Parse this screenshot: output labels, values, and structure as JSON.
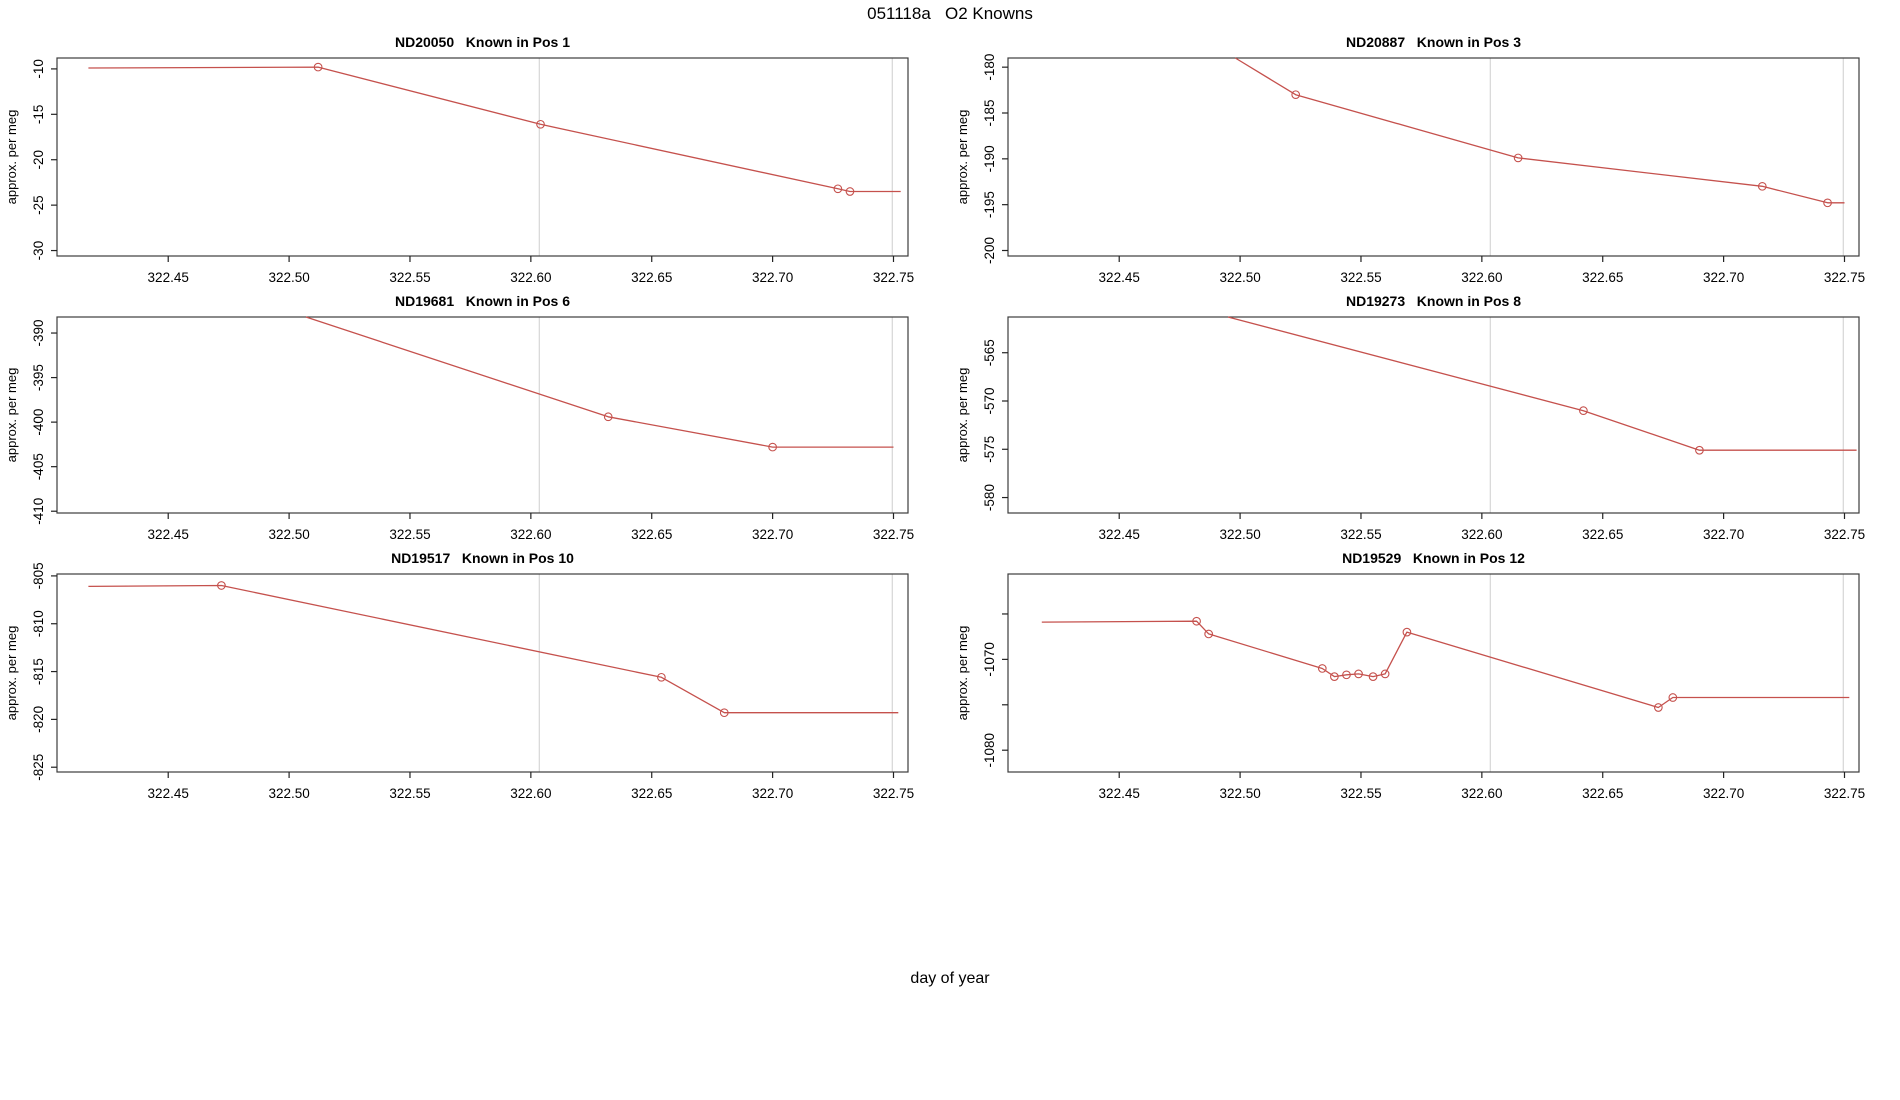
{
  "figure": {
    "title": "051118a   O2 Knowns",
    "xlabel": "day of year",
    "ylabel": "approx. per meg",
    "x_ticks": [
      {
        "v": 322.45,
        "label": "322.45"
      },
      {
        "v": 322.5,
        "label": "322.50"
      },
      {
        "v": 322.55,
        "label": "322.55"
      },
      {
        "v": 322.6,
        "label": "322.60"
      },
      {
        "v": 322.65,
        "label": "322.65"
      },
      {
        "v": 322.7,
        "label": "322.70"
      },
      {
        "v": 322.75,
        "label": "322.75"
      }
    ]
  },
  "colors": {
    "series": "#c5514d",
    "gridline": "#d6d6d6",
    "axis": "#3c3c3c",
    "tick": "#222222",
    "text": "#000000",
    "background": "#ffffff"
  },
  "chart_data": [
    {
      "type": "line",
      "title": "ND20050   Known in Pos 1",
      "sample_id": "ND20050",
      "position": "Pos 1",
      "row": 0,
      "col": 0,
      "xlim": [
        322.404,
        322.756
      ],
      "ylim": [
        -30.6,
        -8.8
      ],
      "gridlines_x": [
        322.6035,
        322.7495
      ],
      "y_ticks": [
        {
          "v": -10,
          "label": "-10"
        },
        {
          "v": -15,
          "label": "-15"
        },
        {
          "v": -20,
          "label": "-20"
        },
        {
          "v": -25,
          "label": "-25"
        },
        {
          "v": -30,
          "label": "-30"
        }
      ],
      "points": [
        {
          "x": 322.417,
          "y": -9.9,
          "m": false
        },
        {
          "x": 322.512,
          "y": -9.8,
          "m": true
        },
        {
          "x": 322.604,
          "y": -16.1,
          "m": true
        },
        {
          "x": 322.727,
          "y": -23.2,
          "m": true
        },
        {
          "x": 322.732,
          "y": -23.5,
          "m": true
        },
        {
          "x": 322.753,
          "y": -23.5,
          "m": false
        }
      ]
    },
    {
      "type": "line",
      "title": "ND20887   Known in Pos 3",
      "sample_id": "ND20887",
      "position": "Pos 3",
      "row": 0,
      "col": 1,
      "xlim": [
        322.404,
        322.756
      ],
      "ylim": [
        -200.6,
        -179.0
      ],
      "gridlines_x": [
        322.6035,
        322.7495
      ],
      "y_ticks": [
        {
          "v": -180,
          "label": "-180"
        },
        {
          "v": -185,
          "label": "-185"
        },
        {
          "v": -190,
          "label": "-190"
        },
        {
          "v": -195,
          "label": "-195"
        },
        {
          "v": -200,
          "label": "-200"
        }
      ],
      "points": [
        {
          "x": 322.498,
          "y": -179.0,
          "m": false
        },
        {
          "x": 322.523,
          "y": -183.0,
          "m": true
        },
        {
          "x": 322.615,
          "y": -189.9,
          "m": true
        },
        {
          "x": 322.716,
          "y": -193.0,
          "m": true
        },
        {
          "x": 322.743,
          "y": -194.8,
          "m": true
        },
        {
          "x": 322.75,
          "y": -194.8,
          "m": false
        }
      ]
    },
    {
      "type": "line",
      "title": "ND19681   Known in Pos 6",
      "sample_id": "ND19681",
      "position": "Pos 6",
      "row": 1,
      "col": 0,
      "xlim": [
        322.404,
        322.756
      ],
      "ylim": [
        -410.2,
        -388.2
      ],
      "gridlines_x": [
        322.6035,
        322.7495
      ],
      "y_ticks": [
        {
          "v": -390,
          "label": "-390"
        },
        {
          "v": -395,
          "label": "-395"
        },
        {
          "v": -400,
          "label": "-400"
        },
        {
          "v": -405,
          "label": "-405"
        },
        {
          "v": -410,
          "label": "-410"
        }
      ],
      "points": [
        {
          "x": 322.507,
          "y": -388.2,
          "m": false
        },
        {
          "x": 322.632,
          "y": -399.4,
          "m": true
        },
        {
          "x": 322.7,
          "y": -402.8,
          "m": true
        },
        {
          "x": 322.75,
          "y": -402.8,
          "m": false
        }
      ]
    },
    {
      "type": "line",
      "title": "ND19273   Known in Pos 8",
      "sample_id": "ND19273",
      "position": "Pos 8",
      "row": 1,
      "col": 1,
      "xlim": [
        322.404,
        322.756
      ],
      "ylim": [
        -581.6,
        -561.3
      ],
      "gridlines_x": [
        322.6035,
        322.7495
      ],
      "y_ticks": [
        {
          "v": -565,
          "label": "-565"
        },
        {
          "v": -570,
          "label": "-570"
        },
        {
          "v": -575,
          "label": "-575"
        },
        {
          "v": -580,
          "label": "-580"
        }
      ],
      "points": [
        {
          "x": 322.495,
          "y": -561.3,
          "m": false
        },
        {
          "x": 322.642,
          "y": -571.0,
          "m": true
        },
        {
          "x": 322.69,
          "y": -575.1,
          "m": true
        },
        {
          "x": 322.755,
          "y": -575.1,
          "m": false
        }
      ]
    },
    {
      "type": "line",
      "title": "ND19517   Known in Pos 10",
      "sample_id": "ND19517",
      "position": "Pos 10",
      "row": 2,
      "col": 0,
      "xlim": [
        322.404,
        322.756
      ],
      "ylim": [
        -825.5,
        -804.8
      ],
      "gridlines_x": [
        322.6035,
        322.7495
      ],
      "y_ticks": [
        {
          "v": -805,
          "label": "-805"
        },
        {
          "v": -810,
          "label": "-810"
        },
        {
          "v": -815,
          "label": "-815"
        },
        {
          "v": -820,
          "label": "-820"
        },
        {
          "v": -825,
          "label": "-825"
        }
      ],
      "points": [
        {
          "x": 322.417,
          "y": -806.1,
          "m": false
        },
        {
          "x": 322.472,
          "y": -806.0,
          "m": true
        },
        {
          "x": 322.654,
          "y": -815.6,
          "m": true
        },
        {
          "x": 322.68,
          "y": -819.3,
          "m": true
        },
        {
          "x": 322.752,
          "y": -819.3,
          "m": false
        }
      ]
    },
    {
      "type": "line",
      "title": "ND19529   Known in Pos 12",
      "sample_id": "ND19529",
      "position": "Pos 12",
      "row": 2,
      "col": 1,
      "xlim": [
        322.404,
        322.756
      ],
      "ylim": [
        -1082.4,
        -1060.6
      ],
      "gridlines_x": [
        322.6035,
        322.7495
      ],
      "y_ticks": [
        {
          "v": -1065,
          "label": ""
        },
        {
          "v": -1070,
          "label": "-1070"
        },
        {
          "v": -1075,
          "label": ""
        },
        {
          "v": -1080,
          "label": "-1080"
        }
      ],
      "points": [
        {
          "x": 322.418,
          "y": -1065.9,
          "m": false
        },
        {
          "x": 322.482,
          "y": -1065.8,
          "m": true
        },
        {
          "x": 322.487,
          "y": -1067.2,
          "m": true
        },
        {
          "x": 322.534,
          "y": -1071.0,
          "m": true
        },
        {
          "x": 322.539,
          "y": -1071.9,
          "m": true
        },
        {
          "x": 322.544,
          "y": -1071.7,
          "m": true
        },
        {
          "x": 322.549,
          "y": -1071.6,
          "m": true
        },
        {
          "x": 322.555,
          "y": -1071.9,
          "m": true
        },
        {
          "x": 322.56,
          "y": -1071.6,
          "m": true
        },
        {
          "x": 322.569,
          "y": -1067.0,
          "m": true
        },
        {
          "x": 322.673,
          "y": -1075.3,
          "m": true
        },
        {
          "x": 322.679,
          "y": -1074.2,
          "m": true
        },
        {
          "x": 322.752,
          "y": -1074.2,
          "m": false
        }
      ]
    }
  ]
}
